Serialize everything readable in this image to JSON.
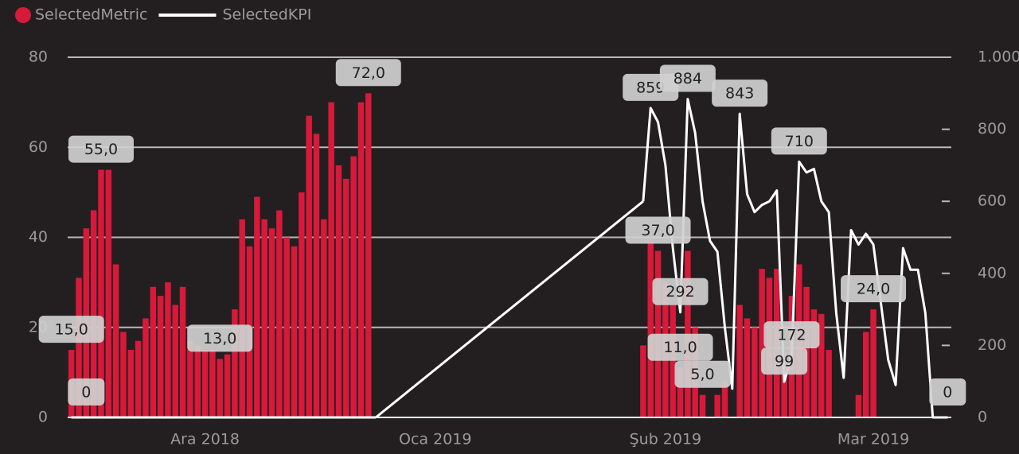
{
  "chart_data": {
    "type": "bar-line",
    "legend": "top-left",
    "grid": true,
    "connect_gaps": true,
    "categories": [
      null,
      null,
      null,
      null,
      null,
      null,
      null,
      null,
      null,
      null,
      null,
      null,
      null,
      null,
      null,
      null,
      null,
      null,
      "Ara 2018",
      null,
      null,
      null,
      null,
      null,
      null,
      null,
      null,
      null,
      null,
      null,
      null,
      null,
      null,
      null,
      null,
      null,
      null,
      null,
      null,
      null,
      null,
      null,
      null,
      null,
      null,
      null,
      null,
      null,
      null,
      "Oca 2019",
      null,
      null,
      null,
      null,
      null,
      null,
      null,
      null,
      null,
      null,
      null,
      null,
      null,
      null,
      null,
      null,
      null,
      null,
      null,
      null,
      null,
      null,
      null,
      null,
      null,
      null,
      null,
      null,
      null,
      null,
      "Şub 2019",
      null,
      null,
      null,
      null,
      null,
      null,
      null,
      null,
      null,
      null,
      null,
      null,
      null,
      null,
      null,
      null,
      null,
      null,
      null,
      null,
      null,
      null,
      null,
      null,
      null,
      null,
      null,
      "Mar 2019",
      null,
      null,
      null,
      null,
      null,
      null,
      null,
      null,
      null,
      null
    ],
    "series": [
      {
        "name": "SelectedMetric",
        "color": "#d7193a",
        "kind": "bar",
        "values": [
          15,
          31,
          42,
          46,
          55,
          55,
          34,
          19,
          15,
          17,
          22,
          29,
          27,
          30,
          25,
          29,
          17,
          16,
          15,
          15,
          13,
          14,
          24,
          44,
          38,
          49,
          44,
          42,
          46,
          40,
          38,
          50,
          67,
          63,
          44,
          70,
          56,
          53,
          58,
          70,
          72,
          null,
          null,
          null,
          null,
          null,
          null,
          null,
          null,
          null,
          null,
          null,
          null,
          null,
          null,
          null,
          null,
          null,
          null,
          null,
          null,
          null,
          null,
          null,
          null,
          null,
          null,
          null,
          null,
          null,
          null,
          null,
          null,
          null,
          null,
          null,
          null,
          16,
          39,
          37,
          30,
          25,
          11,
          37,
          20,
          5,
          null,
          5,
          8,
          null,
          25,
          22,
          20,
          33,
          31,
          33,
          13,
          27,
          34,
          29,
          24,
          23,
          15,
          null,
          null,
          null,
          5,
          19,
          24,
          null,
          null,
          null,
          null,
          null,
          null,
          null,
          null,
          null,
          null
        ],
        "value_labels": [
          "15,0",
          null,
          null,
          null,
          "55,0",
          null,
          null,
          null,
          null,
          null,
          null,
          null,
          null,
          null,
          null,
          null,
          null,
          null,
          null,
          null,
          "13,0",
          null,
          null,
          null,
          null,
          null,
          null,
          null,
          null,
          null,
          null,
          null,
          null,
          null,
          null,
          null,
          null,
          null,
          null,
          null,
          "72,0",
          null,
          null,
          null,
          null,
          null,
          null,
          null,
          null,
          null,
          null,
          null,
          null,
          null,
          null,
          null,
          null,
          null,
          null,
          null,
          null,
          null,
          null,
          null,
          null,
          null,
          null,
          null,
          null,
          null,
          null,
          null,
          null,
          null,
          null,
          null,
          null,
          null,
          null,
          "37,0",
          null,
          null,
          "11,0",
          null,
          null,
          "5,0",
          null,
          null,
          null,
          null,
          null,
          null,
          null,
          null,
          null,
          null,
          null,
          null,
          null,
          null,
          null,
          null,
          null,
          null,
          null,
          null,
          null,
          null,
          "24,0",
          null,
          null,
          null,
          null,
          null,
          null,
          null,
          null,
          null,
          null
        ]
      },
      {
        "name": "SelectedKPI",
        "color": "#ffffff",
        "kind": "line",
        "axis": "y2",
        "values": [
          0,
          0,
          0,
          0,
          0,
          0,
          0,
          0,
          0,
          0,
          0,
          0,
          0,
          0,
          0,
          0,
          0,
          0,
          0,
          0,
          0,
          0,
          0,
          0,
          0,
          0,
          0,
          0,
          0,
          0,
          0,
          0,
          0,
          0,
          0,
          0,
          0,
          0,
          0,
          0,
          0,
          0,
          null,
          null,
          null,
          null,
          null,
          null,
          null,
          null,
          null,
          null,
          null,
          null,
          null,
          null,
          null,
          null,
          null,
          null,
          null,
          null,
          null,
          null,
          null,
          null,
          null,
          null,
          null,
          null,
          null,
          null,
          null,
          null,
          null,
          null,
          null,
          600,
          859,
          820,
          700,
          470,
          292,
          884,
          790,
          600,
          490,
          460,
          250,
          80,
          843,
          620,
          570,
          590,
          600,
          630,
          99,
          172,
          710,
          680,
          690,
          600,
          570,
          290,
          110,
          520,
          480,
          510,
          480,
          320,
          160,
          90,
          470,
          410,
          410,
          290,
          0,
          0,
          0
        ],
        "value_labels": [
          null,
          null,
          "0",
          null,
          null,
          null,
          null,
          null,
          null,
          null,
          null,
          null,
          null,
          null,
          null,
          null,
          null,
          null,
          null,
          null,
          null,
          null,
          null,
          null,
          null,
          null,
          null,
          null,
          null,
          null,
          null,
          null,
          null,
          null,
          null,
          null,
          null,
          null,
          null,
          null,
          null,
          null,
          null,
          null,
          null,
          null,
          null,
          null,
          null,
          null,
          null,
          null,
          null,
          null,
          null,
          null,
          null,
          null,
          null,
          null,
          null,
          null,
          null,
          null,
          null,
          null,
          null,
          null,
          null,
          null,
          null,
          null,
          null,
          null,
          null,
          null,
          null,
          null,
          "859",
          null,
          null,
          null,
          "292",
          "884",
          null,
          null,
          null,
          null,
          null,
          null,
          "843",
          null,
          null,
          null,
          null,
          null,
          "99",
          "172",
          "710",
          null,
          null,
          null,
          null,
          null,
          null,
          null,
          null,
          null,
          null,
          null,
          null,
          null,
          null,
          null,
          null,
          null,
          null,
          null,
          "0"
        ]
      }
    ],
    "ylim": [
      0,
      80
    ],
    "yticks": [
      0,
      20,
      40,
      60,
      80
    ],
    "y2lim": [
      0,
      1000
    ],
    "y2ticks": [
      0,
      200,
      400,
      600,
      800,
      {
        "value": 1000,
        "label": "1.000"
      }
    ]
  }
}
